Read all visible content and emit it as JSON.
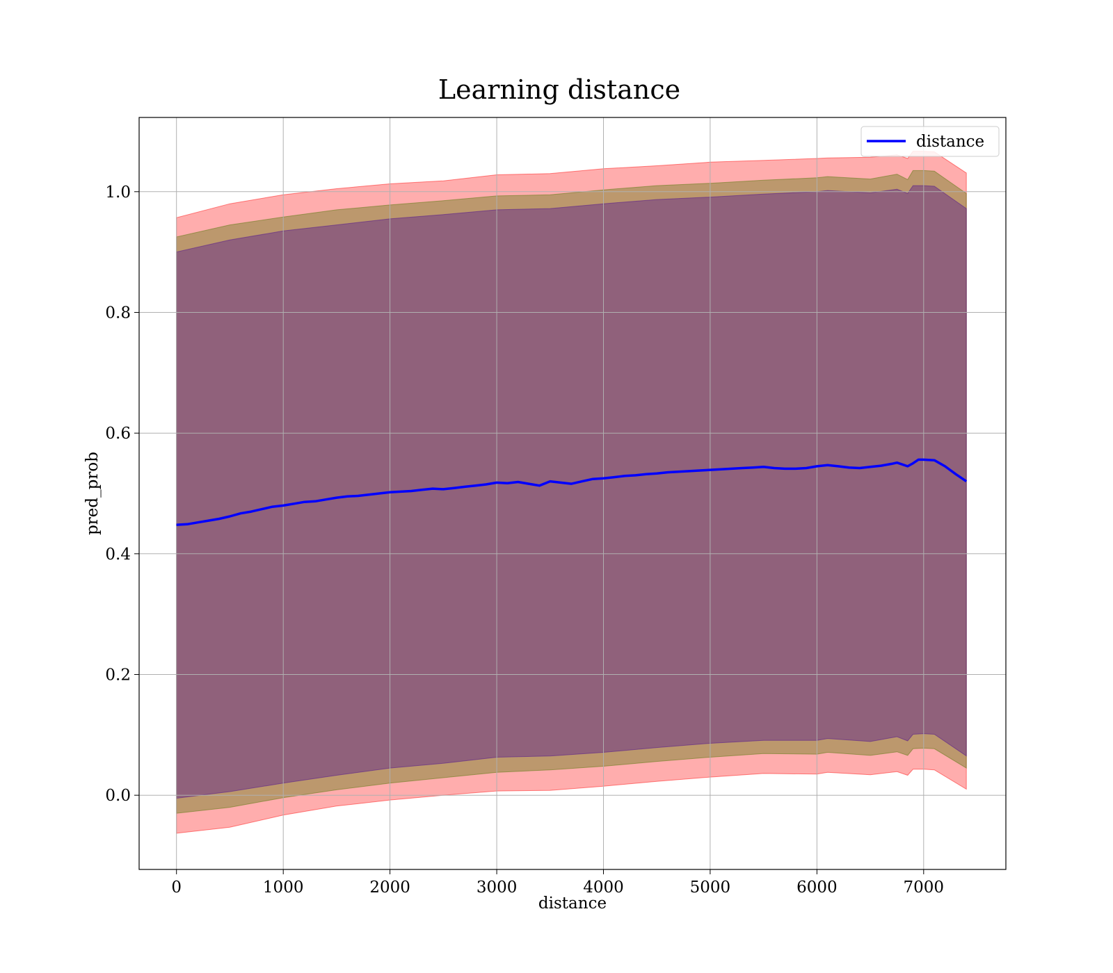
{
  "chart_data": {
    "type": "line",
    "title": "Learning distance",
    "xlabel": "distance",
    "ylabel": "pred_prob",
    "xlim": [
      -350,
      7770
    ],
    "ylim": [
      -0.123,
      1.123
    ],
    "xticks": [
      0,
      1000,
      2000,
      3000,
      4000,
      5000,
      6000,
      7000
    ],
    "yticks": [
      0.0,
      0.2,
      0.4,
      0.6,
      0.8,
      1.0
    ],
    "ytick_labels": [
      "0.0",
      "0.2",
      "0.4",
      "0.6",
      "0.8",
      "1.0"
    ],
    "grid": true,
    "legend_position": "upper right",
    "series": [
      {
        "name": "distance",
        "color": "#0000ff",
        "x": [
          0,
          100,
          200,
          300,
          400,
          500,
          600,
          700,
          800,
          900,
          1000,
          1100,
          1200,
          1300,
          1400,
          1500,
          1600,
          1700,
          1800,
          1900,
          2000,
          2100,
          2200,
          2300,
          2400,
          2500,
          2600,
          2700,
          2800,
          2900,
          3000,
          3100,
          3200,
          3300,
          3400,
          3500,
          3600,
          3700,
          3800,
          3900,
          4000,
          4100,
          4200,
          4300,
          4400,
          4500,
          4600,
          4700,
          4800,
          4900,
          5000,
          5100,
          5200,
          5300,
          5400,
          5500,
          5600,
          5700,
          5800,
          5900,
          6000,
          6100,
          6200,
          6300,
          6400,
          6500,
          6600,
          6700,
          6750,
          6850,
          6900,
          6950,
          7000,
          7100,
          7200,
          7300,
          7400
        ],
        "y": [
          0.448,
          0.449,
          0.452,
          0.455,
          0.458,
          0.462,
          0.467,
          0.47,
          0.474,
          0.478,
          0.48,
          0.483,
          0.486,
          0.487,
          0.49,
          0.493,
          0.495,
          0.496,
          0.498,
          0.5,
          0.502,
          0.503,
          0.504,
          0.506,
          0.508,
          0.507,
          0.509,
          0.511,
          0.513,
          0.515,
          0.518,
          0.517,
          0.519,
          0.516,
          0.513,
          0.52,
          0.518,
          0.516,
          0.52,
          0.524,
          0.525,
          0.527,
          0.529,
          0.53,
          0.532,
          0.533,
          0.535,
          0.536,
          0.537,
          0.538,
          0.539,
          0.54,
          0.541,
          0.542,
          0.543,
          0.544,
          0.542,
          0.541,
          0.541,
          0.542,
          0.545,
          0.547,
          0.545,
          0.543,
          0.542,
          0.544,
          0.546,
          0.549,
          0.551,
          0.545,
          0.55,
          0.556,
          0.556,
          0.555,
          0.545,
          0.532,
          0.52
        ]
      }
    ],
    "bands": [
      {
        "color": "#ff0000",
        "opacity": 0.32,
        "x": [
          0,
          500,
          1000,
          1500,
          2000,
          2500,
          3000,
          3500,
          4000,
          4500,
          5000,
          5500,
          6000,
          6100,
          6500,
          6750,
          6850,
          6900,
          7000,
          7100,
          7400
        ],
        "upper": [
          0.957,
          0.98,
          0.995,
          1.005,
          1.013,
          1.018,
          1.028,
          1.03,
          1.038,
          1.043,
          1.049,
          1.052,
          1.055,
          1.056,
          1.057,
          1.061,
          1.055,
          1.067,
          1.067,
          1.066,
          1.031
        ],
        "lower": [
          -0.063,
          -0.053,
          -0.033,
          -0.018,
          -0.008,
          0.0,
          0.007,
          0.008,
          0.015,
          0.023,
          0.03,
          0.036,
          0.035,
          0.038,
          0.034,
          0.039,
          0.033,
          0.043,
          0.043,
          0.042,
          0.01
        ]
      },
      {
        "color": "#6b7f20",
        "opacity": 0.45,
        "x": [
          0,
          500,
          1000,
          1500,
          2000,
          2500,
          3000,
          3500,
          4000,
          4500,
          5000,
          5500,
          6000,
          6100,
          6500,
          6750,
          6850,
          6900,
          7000,
          7100,
          7400
        ],
        "upper": [
          0.925,
          0.945,
          0.958,
          0.97,
          0.978,
          0.985,
          0.993,
          0.995,
          1.003,
          1.01,
          1.014,
          1.019,
          1.023,
          1.025,
          1.021,
          1.029,
          1.02,
          1.035,
          1.035,
          1.034,
          0.997
        ],
        "lower": [
          -0.03,
          -0.02,
          -0.004,
          0.009,
          0.02,
          0.029,
          0.038,
          0.042,
          0.048,
          0.056,
          0.063,
          0.069,
          0.068,
          0.071,
          0.066,
          0.072,
          0.066,
          0.077,
          0.078,
          0.077,
          0.045
        ]
      },
      {
        "color": "#5a1f8c",
        "opacity": 0.45,
        "x": [
          0,
          500,
          1000,
          1500,
          2000,
          2500,
          3000,
          3500,
          4000,
          4500,
          5000,
          5500,
          6000,
          6100,
          6500,
          6750,
          6850,
          6900,
          7000,
          7100,
          7400
        ],
        "upper": [
          0.9,
          0.92,
          0.935,
          0.945,
          0.955,
          0.962,
          0.97,
          0.972,
          0.98,
          0.987,
          0.991,
          0.996,
          1.0,
          1.002,
          0.998,
          1.004,
          0.997,
          1.01,
          1.01,
          1.009,
          0.972
        ],
        "lower": [
          -0.005,
          0.006,
          0.02,
          0.033,
          0.045,
          0.053,
          0.063,
          0.065,
          0.071,
          0.079,
          0.086,
          0.091,
          0.091,
          0.094,
          0.089,
          0.097,
          0.09,
          0.101,
          0.102,
          0.101,
          0.065
        ]
      }
    ]
  }
}
